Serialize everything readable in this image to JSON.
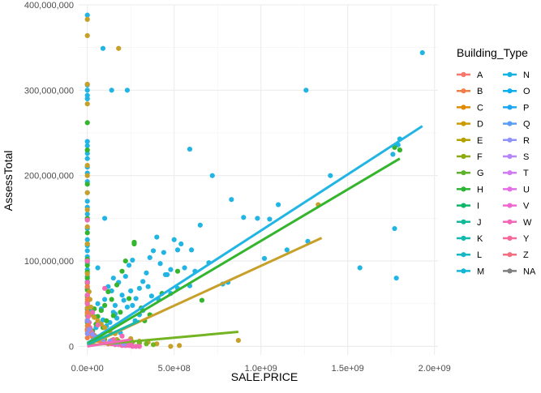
{
  "chart_data": {
    "type": "scatter",
    "xlabel": "SALE.PRICE",
    "ylabel": "AssessTotal",
    "xlim": [
      -50000000,
      2020000000
    ],
    "ylim": [
      -10000000,
      400000000
    ],
    "x_ticks": [
      {
        "value": 0,
        "label": "0.0e+00"
      },
      {
        "value": 500000000,
        "label": "5.0e+08"
      },
      {
        "value": 1000000000,
        "label": "1.0e+09"
      },
      {
        "value": 1500000000,
        "label": "1.5e+09"
      },
      {
        "value": 2000000000,
        "label": "2.0e+09"
      }
    ],
    "y_ticks": [
      {
        "value": 0,
        "label": "0"
      },
      {
        "value": 100000000,
        "label": "100,000,000"
      },
      {
        "value": 200000000,
        "label": "200,000,000"
      },
      {
        "value": 300000000,
        "label": "300,000,000"
      },
      {
        "value": 400000000,
        "label": "400,000,000"
      }
    ],
    "grid": true,
    "legend": {
      "title": "Building_Type",
      "placement": "right",
      "columns": [
        [
          "A",
          "B",
          "C",
          "D",
          "E",
          "F",
          "G",
          "H",
          "I",
          "J",
          "K",
          "L",
          "M"
        ],
        [
          "N",
          "O",
          "P",
          "Q",
          "R",
          "S",
          "T",
          "U",
          "V",
          "W",
          "Y",
          "Z",
          "NA"
        ]
      ]
    },
    "colors": {
      "A": "#F8766D",
      "B": "#E58700",
      "C": "#C99800",
      "D": "#A3A500",
      "E": "#6BB100",
      "F": "#00BA38",
      "G": "#00BF7D",
      "H": "#00C0AF",
      "I": "#00BCD8",
      "J": "#00B0F6",
      "K": "#619CFF",
      "L": "#B983FF",
      "M": "#E76BF3",
      "N": "#FD61D1",
      "O": "#FF67A4",
      "P": "#FF6C67",
      "Q": "#F8766D",
      "R": "#F8766D",
      "S": "#F8766D",
      "T": "#F8766D",
      "U": "#F8766D",
      "V": "#F8766D",
      "W": "#F8766D",
      "Y": "#F8766D",
      "Z": "#F8766D",
      "NA": "#7F7F7F"
    },
    "legend_colors": {
      "A": "#F8766D",
      "B": "#EF7F49",
      "C": "#E08B00",
      "D": "#CE9A02",
      "E": "#B5A200",
      "F": "#8BAB0E",
      "G": "#5FB22B",
      "H": "#2CB535",
      "I": "#0CB769",
      "J": "#12B89A",
      "K": "#14BAB0",
      "L": "#13B8C4",
      "M": "#12B6D6",
      "N": "#14B2E3",
      "O": "#0EAEEC",
      "P": "#1FA6F2",
      "Q": "#5A9DF7",
      "R": "#8F92FA",
      "S": "#B586F9",
      "T": "#D17CF3",
      "U": "#E46FE5",
      "V": "#F067CF",
      "W": "#F465B8",
      "Y": "#F56899",
      "Z": "#F26F80",
      "NA": "#7F7F7F"
    },
    "regression_lines": [
      {
        "group": "O",
        "color": "#22B5E4",
        "x": [
          0,
          1930000000
        ],
        "y": [
          4000000,
          258000000
        ]
      },
      {
        "group": "H",
        "color": "#35B52E",
        "x": [
          0,
          1800000000
        ],
        "y": [
          3000000,
          220000000
        ]
      },
      {
        "group": "D",
        "color": "#C7A02A",
        "x": [
          0,
          1350000000
        ],
        "y": [
          1000000,
          127000000
        ]
      },
      {
        "group": "G",
        "color": "#73B423",
        "x": [
          0,
          870000000
        ],
        "y": [
          1000000,
          17000000
        ]
      },
      {
        "group": "J",
        "color": "#1BB9A5",
        "x": [
          0,
          300000000
        ],
        "y": [
          2000000,
          30000000
        ]
      },
      {
        "group": "W",
        "color": "#F26AB5",
        "x": [
          0,
          250000000
        ],
        "y": [
          0,
          8000000
        ]
      }
    ],
    "series": [
      {
        "name": "O",
        "color": "#22B5E4",
        "x": [
          1930000000,
          1800000000,
          1790000000,
          1760000000,
          1780000000,
          1770000000,
          1570000000,
          1400000000,
          1260000000,
          1270000000,
          1150000000,
          1100000000,
          1050000000,
          1020000000,
          980000000,
          900000000,
          830000000,
          810000000,
          780000000,
          720000000,
          700000000,
          650000000,
          620000000,
          590000000,
          560000000,
          540000000,
          520000000,
          500000000,
          480000000,
          460000000,
          440000000,
          420000000,
          400000000,
          380000000,
          360000000,
          340000000,
          320000000,
          300000000,
          280000000,
          260000000,
          240000000,
          220000000,
          200000000,
          180000000,
          160000000,
          140000000,
          120000000,
          100000000,
          80000000,
          60000000,
          40000000,
          20000000,
          10000000,
          5000000,
          1000000,
          0,
          0,
          0,
          0,
          0,
          0,
          0,
          0,
          0,
          0,
          0,
          0,
          0,
          0,
          0,
          0,
          0,
          0,
          0,
          0,
          0,
          0,
          0,
          0,
          0,
          0,
          0,
          0,
          0,
          0,
          250000000,
          350000000,
          450000000,
          150000000,
          110000000,
          90000000,
          70000000,
          50000000,
          30000000,
          260000000,
          370000000,
          480000000,
          300000000,
          210000000,
          230000000,
          170000000,
          130000000,
          190000000,
          275000000,
          320000000,
          410000000,
          520000000,
          590000000,
          160000000,
          600000000,
          100000000,
          140000000,
          150000000,
          230000000,
          90000000,
          60000000
        ],
        "y": [
          344000000,
          243000000,
          236000000,
          225000000,
          80000000,
          138000000,
          92000000,
          200000000,
          300000000,
          123000000,
          113000000,
          166000000,
          149000000,
          103000000,
          150000000,
          151000000,
          172000000,
          75000000,
          73000000,
          200000000,
          98000000,
          142000000,
          88000000,
          231000000,
          92000000,
          120000000,
          113000000,
          125000000,
          90000000,
          84000000,
          110000000,
          97000000,
          128000000,
          112000000,
          104000000,
          86000000,
          76000000,
          68000000,
          56000000,
          101000000,
          95000000,
          82000000,
          60000000,
          75000000,
          48000000,
          65000000,
          70000000,
          55000000,
          44000000,
          50000000,
          35000000,
          42000000,
          28000000,
          38000000,
          30000000,
          388000000,
          306000000,
          300000000,
          294000000,
          290000000,
          240000000,
          235000000,
          226000000,
          220000000,
          210000000,
          203000000,
          193000000,
          180000000,
          170000000,
          163000000,
          155000000,
          148000000,
          138000000,
          125000000,
          118000000,
          112000000,
          105000000,
          98000000,
          90000000,
          82000000,
          76000000,
          68000000,
          60000000,
          52000000,
          45000000,
          65000000,
          70000000,
          84000000,
          40000000,
          24000000,
          31000000,
          27000000,
          22000000,
          18000000,
          48000000,
          59000000,
          62000000,
          37000000,
          54000000,
          46000000,
          33000000,
          28000000,
          16000000,
          30000000,
          42000000,
          55000000,
          68000000,
          71000000,
          38000000,
          113000000,
          150000000,
          300000000,
          80000000,
          300000000,
          349000000,
          92000000
        ]
      },
      {
        "name": "H",
        "color": "#35B52E",
        "x": [
          1800000000,
          1770000000,
          660000000,
          270000000,
          220000000,
          200000000,
          170000000,
          140000000,
          120000000,
          100000000,
          80000000,
          60000000,
          40000000,
          20000000,
          0,
          0,
          0,
          0,
          0,
          0,
          0,
          0,
          0,
          0,
          0,
          0,
          0,
          0,
          0,
          0,
          0,
          310000000,
          240000000,
          190000000,
          150000000,
          110000000,
          90000000,
          50000000,
          30000000,
          270000000,
          520000000,
          430000000,
          360000000,
          330000000
        ],
        "y": [
          230000000,
          233000000,
          54000000,
          122000000,
          100000000,
          88000000,
          72000000,
          55000000,
          64000000,
          48000000,
          42000000,
          35000000,
          44000000,
          38000000,
          262000000,
          230000000,
          190000000,
          150000000,
          133000000,
          120000000,
          102000000,
          95000000,
          87000000,
          80000000,
          74000000,
          66000000,
          58000000,
          50000000,
          43000000,
          36000000,
          28000000,
          45000000,
          56000000,
          40000000,
          36000000,
          30000000,
          22000000,
          26000000,
          18000000,
          120000000,
          88000000,
          62000000,
          37000000,
          30000000
        ]
      },
      {
        "name": "D",
        "color": "#C7A02A",
        "x": [
          1330000000,
          530000000,
          480000000,
          180000000,
          170000000,
          0,
          0,
          0,
          0,
          0,
          0,
          0,
          0,
          0,
          0,
          0,
          0,
          0,
          0,
          0,
          0,
          0,
          0,
          0,
          0,
          10000000,
          15000000,
          20000000,
          25000000,
          40000000,
          60000000,
          80000000,
          100000000,
          130000000,
          160000000,
          200000000,
          250000000,
          300000000,
          350000000,
          400000000,
          870000000
        ],
        "y": [
          166000000,
          1000000,
          0,
          349000000,
          8000000,
          383000000,
          364000000,
          307000000,
          284000000,
          212000000,
          200000000,
          180000000,
          160000000,
          140000000,
          120000000,
          100000000,
          85000000,
          70000000,
          60000000,
          52000000,
          45000000,
          38000000,
          31000000,
          24000000,
          18000000,
          64000000,
          55000000,
          46000000,
          37000000,
          34000000,
          30000000,
          26000000,
          22000000,
          18000000,
          15000000,
          12000000,
          9000000,
          6000000,
          5000000,
          3000000,
          7000000
        ]
      },
      {
        "name": "G",
        "color": "#73B423",
        "x": [
          0,
          20000000,
          40000000,
          60000000,
          80000000,
          100000000,
          140000000,
          180000000,
          220000000,
          260000000,
          300000000,
          340000000,
          380000000
        ],
        "y": [
          20000000,
          16000000,
          13000000,
          11000000,
          9000000,
          8000000,
          7000000,
          6000000,
          5000000,
          5000000,
          4000000,
          3000000,
          2000000
        ]
      },
      {
        "name": "W",
        "color": "#F26AB5",
        "x": [
          0,
          0,
          0,
          0,
          0,
          0,
          0,
          0,
          5000000,
          10000000,
          15000000,
          20000000,
          30000000,
          40000000,
          50000000,
          60000000,
          70000000,
          80000000,
          90000000,
          100000000,
          120000000,
          140000000,
          160000000,
          180000000,
          200000000,
          220000000,
          240000000,
          260000000,
          280000000,
          300000000,
          100000000,
          60000000,
          30000000,
          200000000,
          150000000,
          250000000
        ],
        "y": [
          148000000,
          100000000,
          75000000,
          60000000,
          50000000,
          40000000,
          30000000,
          20000000,
          35000000,
          28000000,
          22000000,
          18000000,
          15000000,
          12000000,
          10000000,
          8000000,
          7000000,
          6000000,
          5000000,
          4000000,
          3000000,
          3000000,
          2000000,
          2000000,
          1000000,
          1000000,
          1000000,
          0,
          0,
          0,
          68000000,
          25000000,
          40000000,
          12000000,
          8000000,
          5000000
        ]
      },
      {
        "name": "B",
        "color": "#F07F4B",
        "x": [
          0,
          0,
          0,
          0,
          0,
          0,
          5000000,
          10000000,
          20000000,
          30000000,
          40000000,
          60000000,
          80000000,
          120000000
        ],
        "y": [
          70000000,
          55000000,
          40000000,
          30000000,
          20000000,
          10000000,
          25000000,
          18000000,
          14000000,
          11000000,
          9000000,
          7000000,
          5000000,
          3000000
        ]
      },
      {
        "name": "R",
        "color": "#8F92FA",
        "x": [
          0,
          0,
          10000000,
          30000000,
          50000000,
          90000000,
          130000000,
          170000000,
          210000000
        ],
        "y": [
          30000000,
          15000000,
          20000000,
          14000000,
          10000000,
          8000000,
          6000000,
          4000000,
          3000000
        ]
      }
    ]
  }
}
